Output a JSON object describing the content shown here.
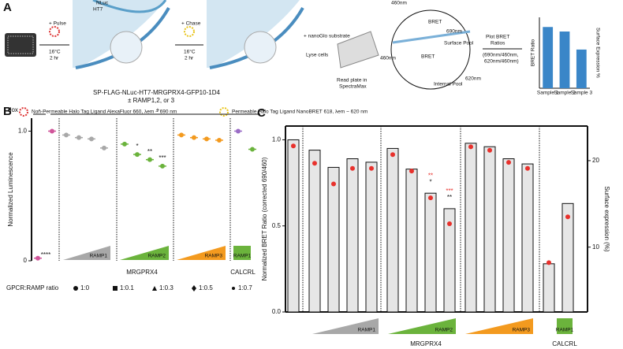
{
  "panel_a": {
    "label": "A",
    "pulse": "+ Pulse",
    "temp1": "16°C",
    "time1": "2 hr",
    "nluc": "NLuc",
    "ht7": "HT7",
    "chase": "+ Chase",
    "temp2": "16°C",
    "time2": "2 hr",
    "substrate": "+ nanoGlo substrate",
    "lyse": "Lyse cells",
    "read1": "Read plate in",
    "read2": "SpectraMax",
    "wl_top": "460nm",
    "bret_top": "BRET",
    "em_top": "690nm",
    "surface": "Surface Pool",
    "wl_bottom": "460nm",
    "bret_bottom": "BRET",
    "em_bottom": "620nm",
    "internal": "Internal Pool",
    "plot1": "Plot BRET",
    "plot2": "Ratios",
    "ratio1": "(690nm/460nm,",
    "ratio2": "620nm/460nm)",
    "construct": "SP-FLAG-NLuc-HT7-MRGPRX4-GFP10-1D4",
    "ramp": "± RAMP1,2, or 3",
    "legend_red": "Non-Permeable Halo Tag Ligand AlexaFluor 660, λem ~ 690 nm",
    "legend_yellow": "Permeable Halo Tag Ligand NanoBRET 618, λem ~ 620 nm"
  },
  "chart_data": [
    {
      "type": "bar",
      "ylabel": "BRET Ratio",
      "y2label": "Surface Expression %",
      "categories": [
        "Sample 1",
        "Sample 2",
        "Sample 3"
      ],
      "values": [
        0.95,
        0.88,
        0.6
      ],
      "color": "#3a86c8",
      "ylim": [
        0,
        1.1
      ]
    },
    {
      "type": "dot",
      "panel_label": "B",
      "dox": "dox",
      "minus": "-",
      "plus": "+",
      "ylabel": "Normalized Luminescence",
      "values": [
        0.02,
        1.0,
        0.97,
        0.95,
        0.94,
        0.87,
        0.9,
        0.82,
        0.78,
        0.73,
        0.97,
        0.95,
        0.94,
        0.93,
        1.0,
        0.86
      ],
      "colors": [
        "#d0559a",
        "#d0559a",
        "#a8a8a8",
        "#a8a8a8",
        "#a8a8a8",
        "#a8a8a8",
        "#6bb33c",
        "#6bb33c",
        "#6bb33c",
        "#6bb33c",
        "#f39a1f",
        "#f39a1f",
        "#f39a1f",
        "#f39a1f",
        "#9b6dc6",
        "#6bb33c"
      ],
      "annotations": [
        "****",
        null,
        null,
        null,
        null,
        null,
        null,
        "*",
        "**",
        "***",
        null,
        null,
        null,
        null,
        null,
        null
      ],
      "ylim": [
        0,
        1.1
      ],
      "yticks": [
        0,
        {
          "value": 1,
          "label": "1.0"
        }
      ],
      "ramps": [
        {
          "label": "RAMP1",
          "color": "#a8a8a8"
        },
        {
          "label": "RAMP2",
          "color": "#6bb33c"
        },
        {
          "label": "RAMP3",
          "color": "#f39a1f"
        },
        {
          "label": "RAMP1",
          "color": "#6bb33c"
        }
      ],
      "group_labels": [
        "MRGPRX4",
        "CALCRL"
      ],
      "legend_title": "GPCR:RAMP ratio",
      "legend": [
        "1:0",
        "1:0.1",
        "1:0.3",
        "1:0.5",
        "1:0.7"
      ]
    },
    {
      "type": "bar",
      "panel_label": "C",
      "ylabel": "Normalized BRET Ratio (corrected 690/460)",
      "y2label": "Surface expression (%)",
      "series": [
        {
          "color": "#e6e6e6",
          "values": [
            1.0,
            0.94,
            0.84,
            0.89,
            0.87,
            0.95,
            0.83,
            0.69,
            0.6,
            0.98,
            0.96,
            0.89,
            0.86,
            0.28,
            0.63
          ]
        },
        {
          "color": "#e8312c",
          "axis": "y2",
          "values": [
            21.7,
            19.7,
            17.3,
            19.1,
            19.1,
            20.7,
            18.8,
            15.7,
            12.7,
            21.6,
            21.2,
            19.8,
            19.1,
            8.2,
            13.5
          ]
        }
      ],
      "annotations": [
        null,
        null,
        null,
        null,
        null,
        null,
        null,
        "*",
        "**",
        null,
        null,
        null,
        null,
        null,
        null
      ],
      "annotations_y2": [
        null,
        null,
        null,
        null,
        null,
        null,
        null,
        "**",
        "***",
        null,
        null,
        null,
        null,
        null,
        null
      ],
      "ylim": [
        0,
        1.08
      ],
      "yticks": [
        {
          "value": 0,
          "label": "0.0"
        },
        {
          "value": 0.5,
          "label": "0.5"
        },
        {
          "value": 1,
          "label": "1.0"
        }
      ],
      "y2lim": [
        2.5,
        24
      ],
      "y2ticks": [
        10,
        20
      ],
      "ramps": [
        {
          "label": "RAMP1",
          "color": "#a8a8a8"
        },
        {
          "label": "RAMP2",
          "color": "#6bb33c"
        },
        {
          "label": "RAMP3",
          "color": "#f39a1f"
        },
        {
          "label": "RAMP1",
          "color": "#6bb33c"
        }
      ],
      "group_labels": [
        "MRGPRX4",
        "CALCRL"
      ]
    }
  ]
}
